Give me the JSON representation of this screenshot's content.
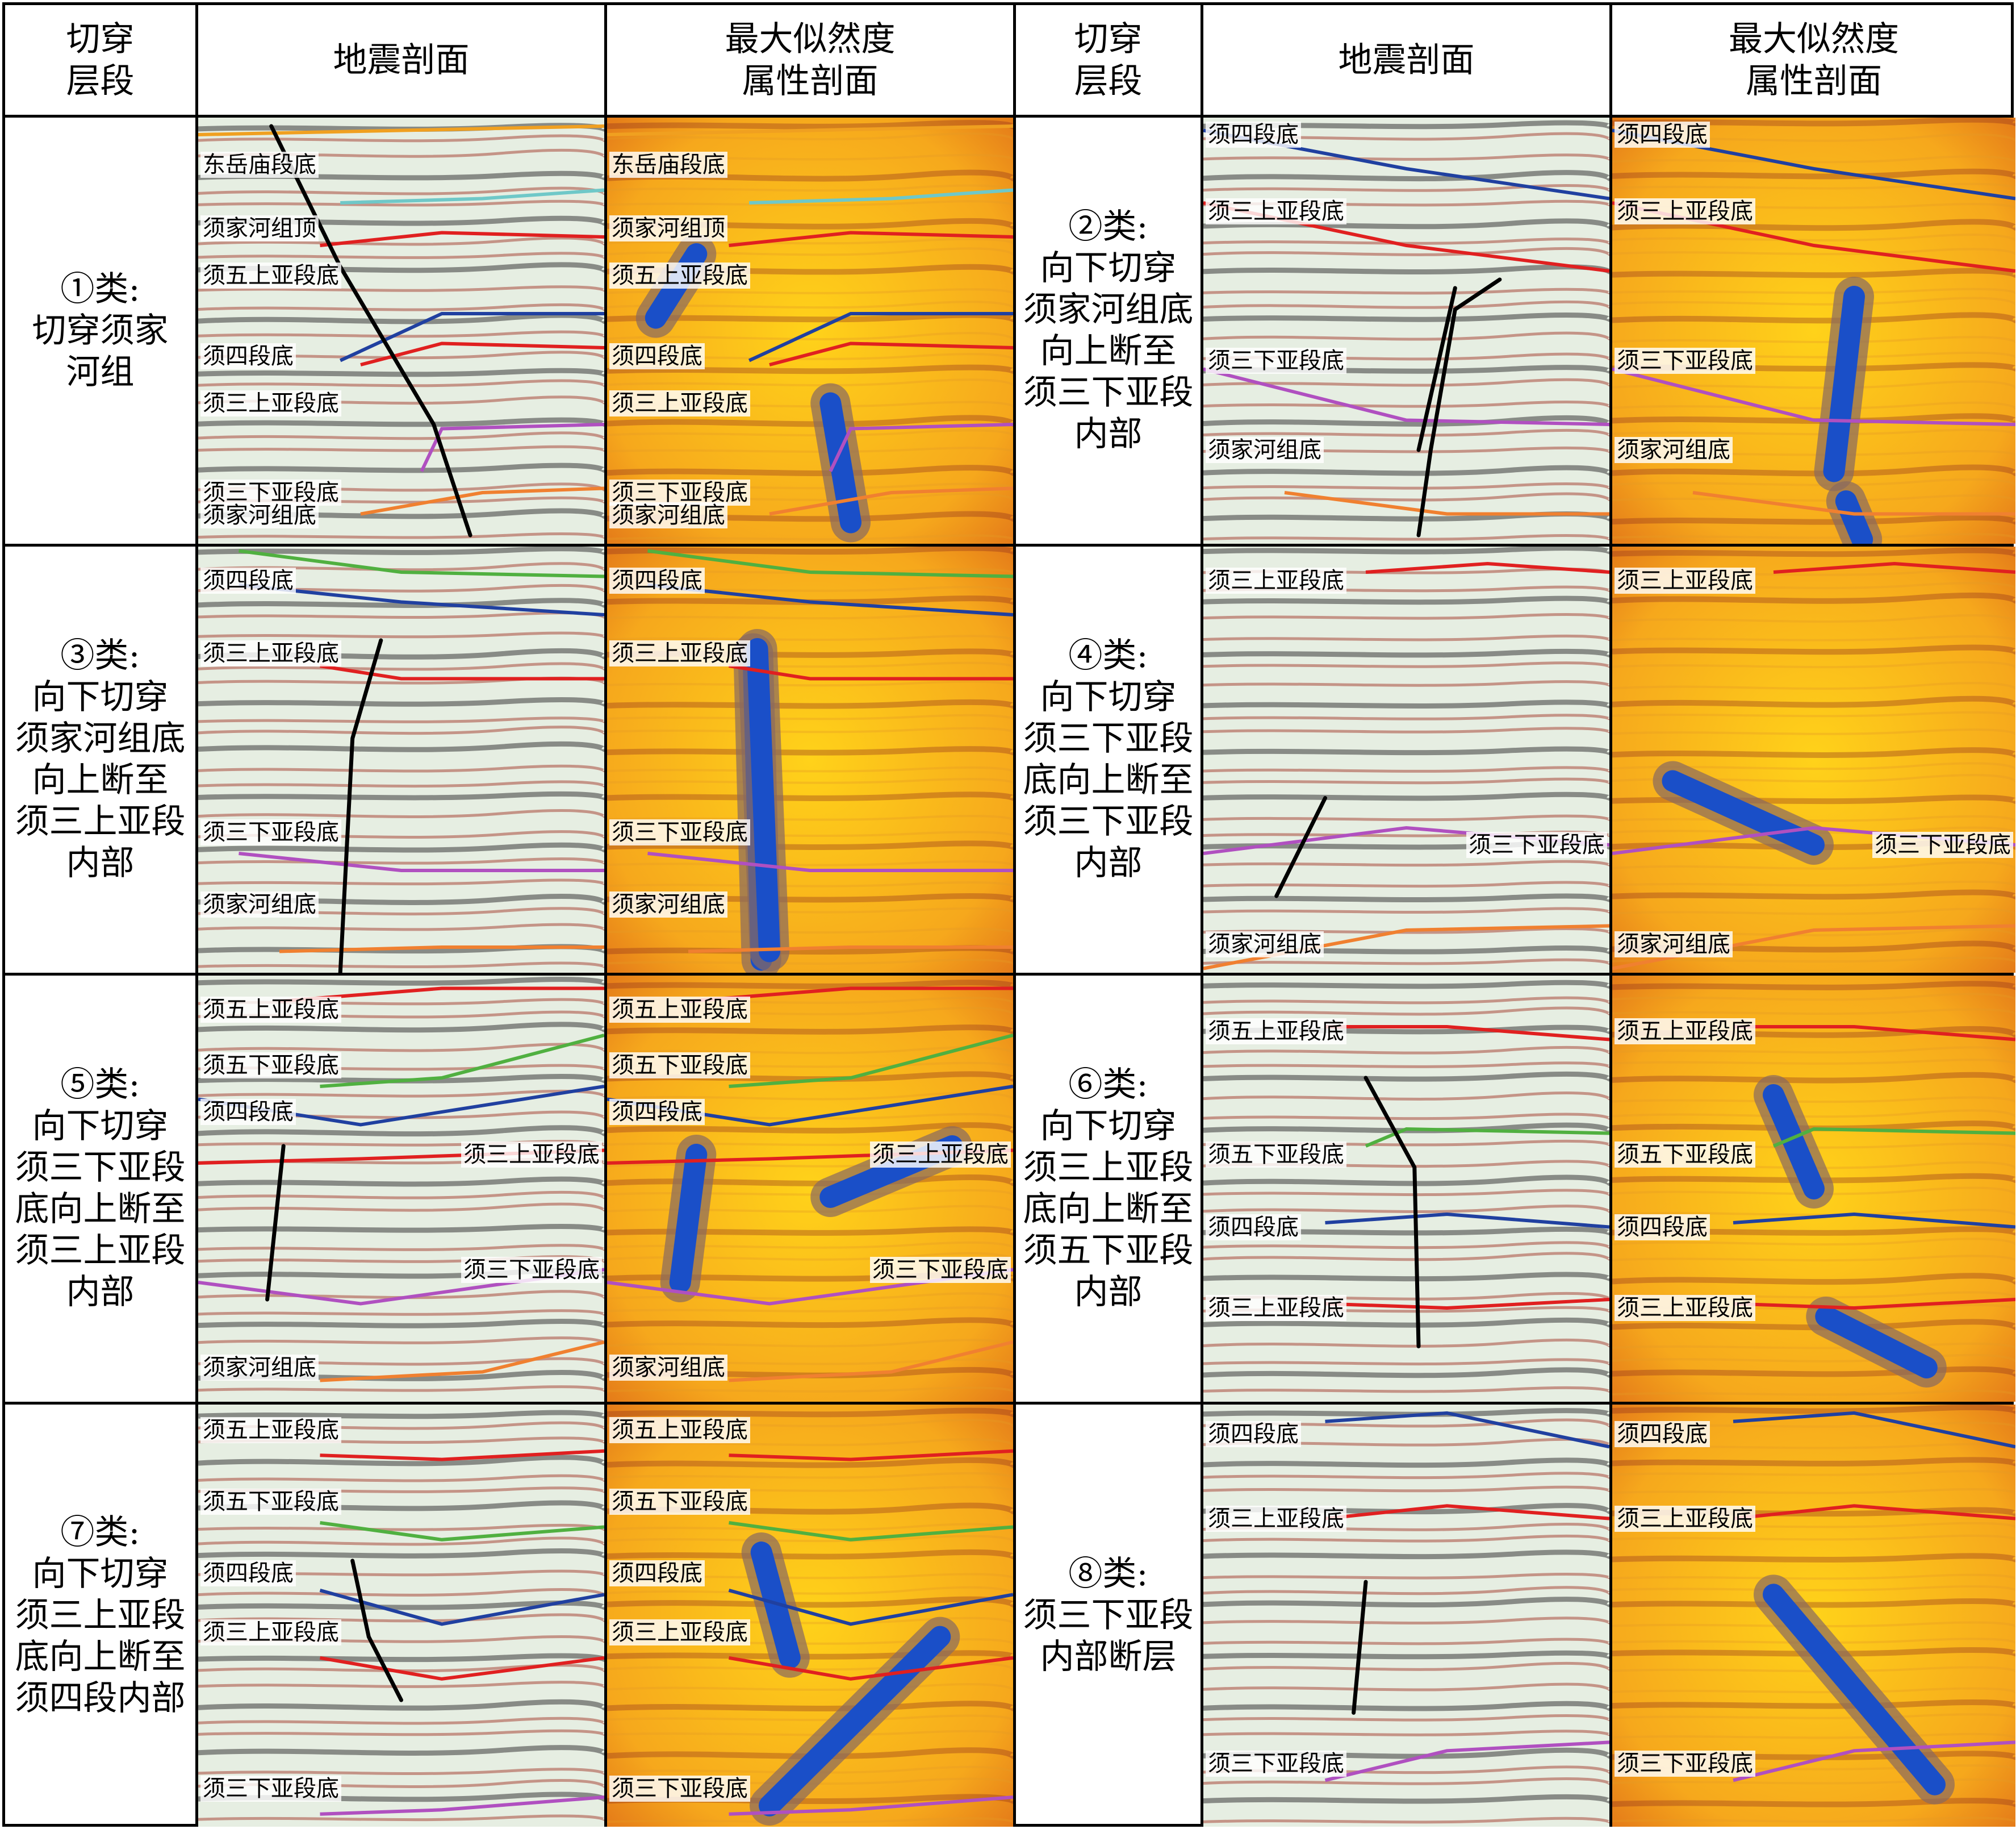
{
  "headers": {
    "cut_layer": "切穿\n层段",
    "seismic": "地震剖面",
    "likelihood": "最大似然度\n属性剖面"
  },
  "classes": [
    {
      "id": "c1",
      "col": 0,
      "row": 0,
      "text": "①类:\n切穿须家\n河组",
      "horizons": [
        {
          "label": "东岳庙段底",
          "color": "#f0a020",
          "pts": [
            [
              0,
              0.04
            ],
            [
              0.5,
              0.03
            ],
            [
              1,
              0.02
            ]
          ],
          "lbl_y": 0.11
        },
        {
          "label": "",
          "color": "#6fc8c8",
          "pts": [
            [
              0.35,
              0.2
            ],
            [
              0.7,
              0.19
            ],
            [
              1,
              0.17
            ]
          ],
          "lbl_y": null
        },
        {
          "label": "须家河组顶",
          "color": "#e02020",
          "pts": [
            [
              0.3,
              0.3
            ],
            [
              0.6,
              0.27
            ],
            [
              1,
              0.28
            ]
          ],
          "lbl_y": 0.26
        },
        {
          "label": "须五上亚段底",
          "color": "#2040a0",
          "pts": [
            [
              0.35,
              0.57
            ],
            [
              0.6,
              0.46
            ],
            [
              1,
              0.46
            ]
          ],
          "lbl_y": 0.37
        },
        {
          "label": "须四段底",
          "color": "#e02020",
          "pts": [
            [
              0.4,
              0.58
            ],
            [
              0.6,
              0.53
            ],
            [
              1,
              0.54
            ]
          ],
          "lbl_y": 0.56
        },
        {
          "label": "须三上亚段底",
          "color": "#b050c0",
          "pts": [
            [
              0.55,
              0.83
            ],
            [
              0.6,
              0.73
            ],
            [
              1,
              0.72
            ]
          ],
          "lbl_y": 0.67
        },
        {
          "label": "须三下亚段底",
          "color": "#f08030",
          "pts": [
            [
              0.4,
              0.93
            ],
            [
              0.7,
              0.88
            ],
            [
              1,
              0.87
            ]
          ],
          "lbl_y": 0.88
        },
        {
          "label": "须家河组底",
          "color": "",
          "pts": [],
          "lbl_y": 0.97
        }
      ],
      "fault": [
        [
          0.18,
          0.02
        ],
        [
          0.35,
          0.35
        ],
        [
          0.58,
          0.72
        ],
        [
          0.67,
          0.98
        ]
      ],
      "blob": [
        [
          0.12,
          0.47
        ],
        [
          0.22,
          0.32
        ],
        [
          0.55,
          0.67
        ],
        [
          0.6,
          0.95
        ]
      ]
    },
    {
      "id": "c2",
      "col": 1,
      "row": 0,
      "text": "②类:\n向下切穿\n须家河组底\n向上断至\n须三下亚段\n内部",
      "horizons": [
        {
          "label": "须四段底",
          "color": "#2040a0",
          "pts": [
            [
              0,
              0.03
            ],
            [
              0.5,
              0.12
            ],
            [
              1,
              0.19
            ]
          ],
          "lbl_y": 0.04
        },
        {
          "label": "须三上亚段底",
          "color": "#e02020",
          "pts": [
            [
              0,
              0.2
            ],
            [
              0.5,
              0.3
            ],
            [
              1,
              0.36
            ]
          ],
          "lbl_y": 0.22
        },
        {
          "label": "须三下亚段底",
          "color": "#b050c0",
          "pts": [
            [
              0,
              0.59
            ],
            [
              0.5,
              0.71
            ],
            [
              1,
              0.72
            ]
          ],
          "lbl_y": 0.57
        },
        {
          "label": "须家河组底",
          "color": "#f08030",
          "pts": [
            [
              0.2,
              0.88
            ],
            [
              0.6,
              0.93
            ],
            [
              1,
              0.93
            ]
          ],
          "lbl_y": 0.78
        }
      ],
      "fault": [
        [
          0.62,
          0.4
        ],
        [
          0.53,
          0.78
        ],
        [
          0.61,
          0.42
        ],
        [
          0.73,
          0.38
        ]
      ],
      "blob": [
        [
          0.55,
          0.83
        ],
        [
          0.6,
          0.42
        ],
        [
          0.58,
          0.9
        ],
        [
          0.62,
          0.99
        ]
      ]
    },
    {
      "id": "c3",
      "col": 0,
      "row": 1,
      "text": "③类:\n向下切穿\n须家河组底\n向上断至\n须三上亚段\n内部",
      "horizons": [
        {
          "label": "须四段底",
          "color": "#50b040",
          "pts": [
            [
              0.1,
              0.01
            ],
            [
              0.5,
              0.06
            ],
            [
              1,
              0.07
            ]
          ],
          "lbl_y": 0.08
        },
        {
          "label": "",
          "color": "#2040a0",
          "pts": [
            [
              0.1,
              0.09
            ],
            [
              0.5,
              0.13
            ],
            [
              1,
              0.16
            ]
          ],
          "lbl_y": null
        },
        {
          "label": "须三上亚段底",
          "color": "#e02020",
          "pts": [
            [
              0.3,
              0.28
            ],
            [
              0.5,
              0.31
            ],
            [
              1,
              0.31
            ]
          ],
          "lbl_y": 0.25
        },
        {
          "label": "须三下亚段底",
          "color": "#b050c0",
          "pts": [
            [
              0.1,
              0.72
            ],
            [
              0.5,
              0.76
            ],
            [
              1,
              0.76
            ]
          ],
          "lbl_y": 0.67
        },
        {
          "label": "须家河组底",
          "color": "#f08030",
          "pts": [
            [
              0.2,
              0.95
            ],
            [
              0.6,
              0.94
            ],
            [
              1,
              0.94
            ]
          ],
          "lbl_y": 0.84
        }
      ],
      "fault": [
        [
          0.45,
          0.22
        ],
        [
          0.38,
          0.45
        ],
        [
          0.35,
          1.0
        ]
      ],
      "blob": [
        [
          0.36,
          0.25
        ],
        [
          0.38,
          0.97
        ],
        [
          0.37,
          0.24
        ],
        [
          0.4,
          0.95
        ]
      ]
    },
    {
      "id": "c4",
      "col": 1,
      "row": 1,
      "text": "④类:\n向下切穿\n须三下亚段\n底向上断至\n须三下亚段\n内部",
      "horizons": [
        {
          "label": "须三上亚段底",
          "color": "#e02020",
          "pts": [
            [
              0.4,
              0.06
            ],
            [
              0.7,
              0.04
            ],
            [
              1,
              0.06
            ]
          ],
          "lbl_y": 0.08
        },
        {
          "label": "须三下亚段底",
          "color": "#b050c0",
          "pts": [
            [
              0,
              0.72
            ],
            [
              0.5,
              0.66
            ],
            [
              1,
              0.7
            ]
          ],
          "lbl_y": 0.7,
          "lbl_x": "right"
        },
        {
          "label": "须家河组底",
          "color": "#f08030",
          "pts": [
            [
              0,
              0.99
            ],
            [
              0.5,
              0.9
            ],
            [
              1,
              0.89
            ]
          ],
          "lbl_y": 0.95
        }
      ],
      "fault": [
        [
          0.3,
          0.59
        ],
        [
          0.18,
          0.82
        ]
      ],
      "blob": [
        [
          0.15,
          0.55
        ],
        [
          0.5,
          0.7
        ]
      ]
    },
    {
      "id": "c5",
      "col": 0,
      "row": 2,
      "text": "⑤类:\n向下切穿\n须三下亚段\n底向上断至\n须三上亚段\n内部",
      "horizons": [
        {
          "label": "须五上亚段底",
          "color": "#e02020",
          "pts": [
            [
              0.2,
              0.06
            ],
            [
              0.6,
              0.03
            ],
            [
              1,
              0.03
            ]
          ],
          "lbl_y": 0.08
        },
        {
          "label": "须五下亚段底",
          "color": "#50b040",
          "pts": [
            [
              0.3,
              0.26
            ],
            [
              0.6,
              0.24
            ],
            [
              1,
              0.14
            ]
          ],
          "lbl_y": 0.21
        },
        {
          "label": "须四段底",
          "color": "#2040a0",
          "pts": [
            [
              0,
              0.29
            ],
            [
              0.4,
              0.35
            ],
            [
              1,
              0.26
            ]
          ],
          "lbl_y": 0.32
        },
        {
          "label": "须三上亚段底",
          "color": "#e02020",
          "pts": [
            [
              0,
              0.44
            ],
            [
              0.4,
              0.43
            ],
            [
              1,
              0.41
            ]
          ],
          "lbl_y": 0.42,
          "lbl_x": "right"
        },
        {
          "label": "须三下亚段底",
          "color": "#b050c0",
          "pts": [
            [
              0,
              0.72
            ],
            [
              0.4,
              0.77
            ],
            [
              1,
              0.69
            ]
          ],
          "lbl_y": 0.69,
          "lbl_x": "right"
        },
        {
          "label": "须家河组底",
          "color": "#f08030",
          "pts": [
            [
              0.3,
              0.95
            ],
            [
              0.7,
              0.93
            ],
            [
              1,
              0.86
            ]
          ],
          "lbl_y": 0.92
        }
      ],
      "fault": [
        [
          0.21,
          0.4
        ],
        [
          0.17,
          0.76
        ]
      ],
      "blob": [
        [
          0.22,
          0.42
        ],
        [
          0.18,
          0.72
        ],
        [
          0.55,
          0.52
        ],
        [
          0.85,
          0.4
        ]
      ]
    },
    {
      "id": "c6",
      "col": 1,
      "row": 2,
      "text": "⑥类:\n向下切穿\n须三上亚段\n底向上断至\n须五下亚段\n内部",
      "horizons": [
        {
          "label": "须五上亚段底",
          "color": "#e02020",
          "pts": [
            [
              0.3,
              0.12
            ],
            [
              0.6,
              0.12
            ],
            [
              1,
              0.15
            ]
          ],
          "lbl_y": 0.13
        },
        {
          "label": "须五下亚段底",
          "color": "#50b040",
          "pts": [
            [
              0.4,
              0.4
            ],
            [
              0.5,
              0.36
            ],
            [
              1,
              0.37
            ]
          ],
          "lbl_y": 0.42
        },
        {
          "label": "须四段底",
          "color": "#2040a0",
          "pts": [
            [
              0.3,
              0.58
            ],
            [
              0.6,
              0.56
            ],
            [
              1,
              0.59
            ]
          ],
          "lbl_y": 0.59
        },
        {
          "label": "须三上亚段底",
          "color": "#e02020",
          "pts": [
            [
              0.3,
              0.77
            ],
            [
              0.6,
              0.78
            ],
            [
              1,
              0.76
            ]
          ],
          "lbl_y": 0.78
        }
      ],
      "fault": [
        [
          0.4,
          0.24
        ],
        [
          0.52,
          0.45
        ],
        [
          0.53,
          0.87
        ]
      ],
      "blob": [
        [
          0.4,
          0.28
        ],
        [
          0.5,
          0.5
        ],
        [
          0.53,
          0.8
        ],
        [
          0.78,
          0.92
        ]
      ]
    },
    {
      "id": "c7",
      "col": 0,
      "row": 3,
      "text": "⑦类:\n向下切穿\n须三上亚段\n底向上断至\n须四段内部",
      "horizons": [
        {
          "label": "须五上亚段底",
          "color": "#e02020",
          "pts": [
            [
              0.3,
              0.12
            ],
            [
              0.6,
              0.13
            ],
            [
              1,
              0.11
            ]
          ],
          "lbl_y": 0.06
        },
        {
          "label": "须五下亚段底",
          "color": "#50b040",
          "pts": [
            [
              0.3,
              0.28
            ],
            [
              0.6,
              0.32
            ],
            [
              1,
              0.29
            ]
          ],
          "lbl_y": 0.23
        },
        {
          "label": "须四段底",
          "color": "#2040a0",
          "pts": [
            [
              0.3,
              0.44
            ],
            [
              0.6,
              0.52
            ],
            [
              1,
              0.45
            ]
          ],
          "lbl_y": 0.4
        },
        {
          "label": "须三上亚段底",
          "color": "#e02020",
          "pts": [
            [
              0.3,
              0.6
            ],
            [
              0.6,
              0.65
            ],
            [
              1,
              0.6
            ]
          ],
          "lbl_y": 0.54
        },
        {
          "label": "须三下亚段底",
          "color": "#b050c0",
          "pts": [
            [
              0.3,
              0.97
            ],
            [
              0.6,
              0.96
            ],
            [
              1,
              0.93
            ]
          ],
          "lbl_y": 0.91
        }
      ],
      "fault": [
        [
          0.38,
          0.37
        ],
        [
          0.42,
          0.55
        ],
        [
          0.5,
          0.7
        ]
      ],
      "blob": [
        [
          0.38,
          0.35
        ],
        [
          0.45,
          0.6
        ],
        [
          0.82,
          0.55
        ],
        [
          0.4,
          0.95
        ]
      ]
    },
    {
      "id": "c8",
      "col": 1,
      "row": 3,
      "text": "⑧类:\n须三下亚段\n内部断层",
      "horizons": [
        {
          "label": "须四段底",
          "color": "#2040a0",
          "pts": [
            [
              0.3,
              0.04
            ],
            [
              0.6,
              0.02
            ],
            [
              1,
              0.1
            ]
          ],
          "lbl_y": 0.07
        },
        {
          "label": "须三上亚段底",
          "color": "#e02020",
          "pts": [
            [
              0.3,
              0.27
            ],
            [
              0.6,
              0.24
            ],
            [
              1,
              0.27
            ]
          ],
          "lbl_y": 0.27
        },
        {
          "label": "须三下亚段底",
          "color": "#b050c0",
          "pts": [
            [
              0.3,
              0.89
            ],
            [
              0.6,
              0.82
            ],
            [
              1,
              0.8
            ]
          ],
          "lbl_y": 0.85
        }
      ],
      "fault": [
        [
          0.4,
          0.42
        ],
        [
          0.37,
          0.73
        ]
      ],
      "blob": [
        [
          0.4,
          0.45
        ],
        [
          0.8,
          0.9
        ],
        [
          0.92,
          0.85
        ]
      ]
    }
  ]
}
